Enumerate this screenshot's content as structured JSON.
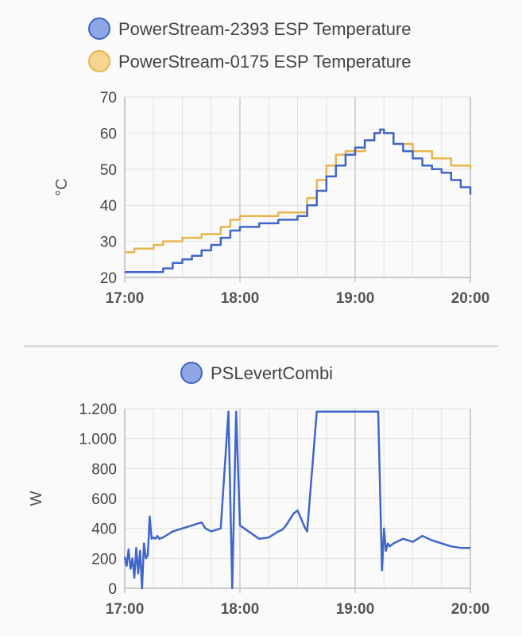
{
  "chart_data": [
    {
      "type": "line",
      "title": "",
      "xlabel": "",
      "ylabel": "°C",
      "ylim": [
        20,
        70
      ],
      "yticks": [
        20,
        30,
        40,
        50,
        60,
        70
      ],
      "xlim": [
        "17:00",
        "20:00"
      ],
      "xticks": [
        "17:00",
        "18:00",
        "19:00",
        "20:00"
      ],
      "grid": true,
      "legend_position": "top",
      "series": [
        {
          "name": "PowerStream-2393 ESP Temperature",
          "color": "#3f66c9",
          "fill": "#8ea6e4",
          "step": true,
          "x": [
            "17:00",
            "17:15",
            "17:20",
            "17:25",
            "17:30",
            "17:35",
            "17:40",
            "17:45",
            "17:50",
            "17:55",
            "18:00",
            "18:10",
            "18:20",
            "18:30",
            "18:35",
            "18:40",
            "18:45",
            "18:50",
            "18:55",
            "19:00",
            "19:05",
            "19:10",
            "19:13",
            "19:15",
            "19:20",
            "19:25",
            "19:30",
            "19:35",
            "19:40",
            "19:45",
            "19:50",
            "19:55",
            "20:00"
          ],
          "y": [
            21.5,
            21.5,
            22.5,
            24,
            25,
            26,
            27.5,
            29,
            31,
            33,
            34,
            35,
            36,
            37,
            40,
            44,
            48,
            51,
            54,
            56,
            58,
            60,
            61,
            60,
            57,
            55,
            53,
            51,
            50,
            49,
            47,
            45,
            43
          ]
        },
        {
          "name": "PowerStream-0175 ESP Temperature",
          "color": "#eab44d",
          "fill": "#f6d492",
          "step": true,
          "x": [
            "17:00",
            "17:05",
            "17:15",
            "17:20",
            "17:30",
            "17:40",
            "17:50",
            "17:55",
            "18:00",
            "18:10",
            "18:20",
            "18:30",
            "18:35",
            "18:40",
            "18:45",
            "18:50",
            "18:55",
            "19:00",
            "19:05",
            "19:10",
            "19:13",
            "19:15",
            "19:20",
            "19:30",
            "19:40",
            "19:50",
            "20:00"
          ],
          "y": [
            27,
            28,
            29,
            30,
            31,
            32,
            34,
            36,
            37,
            37,
            38,
            38,
            42,
            47,
            51,
            54,
            55,
            55,
            58,
            60,
            61,
            60,
            57,
            55,
            53,
            51,
            50
          ]
        }
      ]
    },
    {
      "type": "line",
      "title": "",
      "xlabel": "",
      "ylabel": "W",
      "ylim": [
        0,
        1200
      ],
      "yticks": [
        0,
        200,
        400,
        600,
        800,
        1000,
        1200
      ],
      "yticklabels": [
        "0",
        "200",
        "400",
        "600",
        "800",
        "1.000",
        "1.200"
      ],
      "xlim": [
        "17:00",
        "20:00"
      ],
      "xticks": [
        "17:00",
        "18:00",
        "19:00",
        "20:00"
      ],
      "grid": true,
      "legend_position": "top",
      "series": [
        {
          "name": "PSLevertCombi",
          "color": "#3f66c9",
          "fill": "#8ea6e4",
          "x": [
            "17:00",
            "17:01",
            "17:02",
            "17:03",
            "17:04",
            "17:05",
            "17:06",
            "17:07",
            "17:08",
            "17:09",
            "17:10",
            "17:11",
            "17:12",
            "17:13",
            "17:14",
            "17:15",
            "17:16",
            "17:17",
            "17:18",
            "17:20",
            "17:25",
            "17:30",
            "17:35",
            "17:40",
            "17:42",
            "17:45",
            "17:50",
            "17:54",
            "17:56",
            "17:58",
            "18:00",
            "18:10",
            "18:15",
            "18:20",
            "18:22",
            "18:24",
            "18:26",
            "18:28",
            "18:30",
            "18:34",
            "18:35",
            "18:40",
            "18:50",
            "19:00",
            "19:10",
            "19:12",
            "19:14",
            "19:15",
            "19:16",
            "19:17",
            "19:18",
            "19:20",
            "19:25",
            "19:30",
            "19:35",
            "19:40",
            "19:45",
            "19:50",
            "19:55",
            "20:00"
          ],
          "y": [
            210,
            150,
            260,
            130,
            200,
            70,
            270,
            100,
            250,
            0,
            300,
            200,
            220,
            480,
            330,
            340,
            330,
            350,
            330,
            340,
            380,
            400,
            420,
            440,
            400,
            380,
            400,
            1180,
            0,
            1180,
            420,
            330,
            340,
            380,
            390,
            420,
            460,
            500,
            520,
            400,
            380,
            1180,
            1180,
            1180,
            1180,
            1180,
            120,
            400,
            250,
            300,
            280,
            300,
            330,
            310,
            350,
            320,
            300,
            280,
            270,
            270
          ]
        }
      ]
    }
  ]
}
